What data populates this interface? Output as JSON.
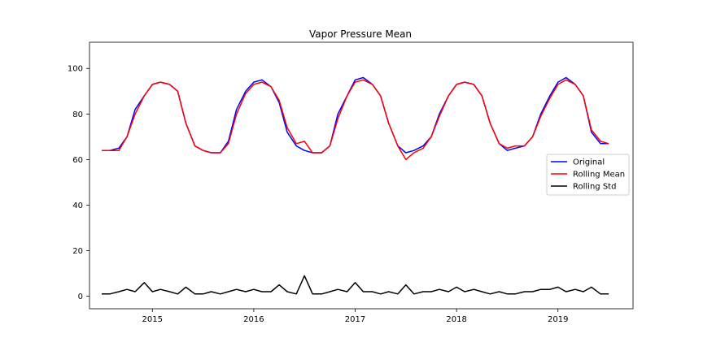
{
  "chart_data": {
    "type": "line",
    "title": "Vapor Pressure Mean",
    "xlabel": "",
    "ylabel": "",
    "xlim": [
      2014.38,
      2019.74
    ],
    "ylim": [
      -5.5,
      111.5
    ],
    "x_ticks": [
      2015,
      2016,
      2017,
      2018,
      2019
    ],
    "x_tick_labels": [
      "2015",
      "2016",
      "2017",
      "2018",
      "2019"
    ],
    "y_ticks": [
      0,
      20,
      40,
      60,
      80,
      100
    ],
    "y_tick_labels": [
      "0",
      "20",
      "40",
      "60",
      "80",
      "100"
    ],
    "grid": false,
    "legend_position": "center-right",
    "series": [
      {
        "name": "Original",
        "color": "#0000ff",
        "x": [
          2014.5,
          2014.58,
          2014.67,
          2014.75,
          2014.83,
          2014.92,
          2015.0,
          2015.08,
          2015.17,
          2015.25,
          2015.33,
          2015.42,
          2015.5,
          2015.58,
          2015.67,
          2015.75,
          2015.83,
          2015.92,
          2016.0,
          2016.08,
          2016.17,
          2016.25,
          2016.33,
          2016.42,
          2016.5,
          2016.58,
          2016.67,
          2016.75,
          2016.83,
          2016.92,
          2017.0,
          2017.08,
          2017.17,
          2017.25,
          2017.33,
          2017.42,
          2017.5,
          2017.58,
          2017.67,
          2017.75,
          2017.83,
          2017.92,
          2018.0,
          2018.08,
          2018.17,
          2018.25,
          2018.33,
          2018.42,
          2018.5,
          2018.58,
          2018.67,
          2018.75,
          2018.83,
          2018.92,
          2019.0,
          2019.08,
          2019.17,
          2019.25,
          2019.33,
          2019.42,
          2019.5
        ],
        "values": [
          64,
          64,
          65,
          70,
          82,
          88,
          93,
          94,
          93,
          90,
          76,
          66,
          64,
          63,
          63,
          68,
          82,
          90,
          94,
          95,
          92,
          85,
          72,
          66,
          64,
          63,
          63,
          66,
          80,
          88,
          95,
          96,
          93,
          88,
          76,
          66,
          63,
          64,
          66,
          70,
          80,
          88,
          93,
          94,
          93,
          88,
          76,
          67,
          64,
          65,
          66,
          70,
          80,
          88,
          94,
          96,
          93,
          88,
          72,
          67,
          67
        ]
      },
      {
        "name": "Rolling Mean",
        "color": "#ff0000",
        "x": [
          2014.5,
          2014.58,
          2014.67,
          2014.75,
          2014.83,
          2014.92,
          2015.0,
          2015.08,
          2015.17,
          2015.25,
          2015.33,
          2015.42,
          2015.5,
          2015.58,
          2015.67,
          2015.75,
          2015.83,
          2015.92,
          2016.0,
          2016.08,
          2016.17,
          2016.25,
          2016.33,
          2016.42,
          2016.5,
          2016.58,
          2016.67,
          2016.75,
          2016.83,
          2016.92,
          2017.0,
          2017.08,
          2017.17,
          2017.25,
          2017.33,
          2017.42,
          2017.5,
          2017.58,
          2017.67,
          2017.75,
          2017.83,
          2017.92,
          2018.0,
          2018.08,
          2018.17,
          2018.25,
          2018.33,
          2018.42,
          2018.5,
          2018.58,
          2018.67,
          2018.75,
          2018.83,
          2018.92,
          2019.0,
          2019.08,
          2019.17,
          2019.25,
          2019.33,
          2019.42,
          2019.5
        ],
        "values": [
          64,
          64,
          64,
          70,
          80,
          88,
          93,
          94,
          93,
          90,
          76,
          66,
          64,
          63,
          63,
          67,
          80,
          89,
          93,
          94,
          92,
          86,
          74,
          67,
          68,
          63,
          63,
          66,
          78,
          88,
          94,
          95,
          93,
          88,
          76,
          66,
          60,
          63,
          65,
          70,
          79,
          88,
          93,
          94,
          93,
          88,
          76,
          67,
          65,
          66,
          66,
          70,
          79,
          87,
          93,
          95,
          93,
          88,
          73,
          68,
          67
        ]
      },
      {
        "name": "Rolling Std",
        "color": "#000000",
        "x": [
          2014.5,
          2014.58,
          2014.67,
          2014.75,
          2014.83,
          2014.92,
          2015.0,
          2015.08,
          2015.17,
          2015.25,
          2015.33,
          2015.42,
          2015.5,
          2015.58,
          2015.67,
          2015.75,
          2015.83,
          2015.92,
          2016.0,
          2016.08,
          2016.17,
          2016.25,
          2016.33,
          2016.42,
          2016.5,
          2016.58,
          2016.67,
          2016.75,
          2016.83,
          2016.92,
          2017.0,
          2017.08,
          2017.17,
          2017.25,
          2017.33,
          2017.42,
          2017.5,
          2017.58,
          2017.67,
          2017.75,
          2017.83,
          2017.92,
          2018.0,
          2018.08,
          2018.17,
          2018.25,
          2018.33,
          2018.42,
          2018.5,
          2018.58,
          2018.67,
          2018.75,
          2018.83,
          2018.92,
          2019.0,
          2019.08,
          2019.17,
          2019.25,
          2019.33,
          2019.42,
          2019.5
        ],
        "values": [
          1,
          1,
          2,
          3,
          2,
          6,
          2,
          3,
          2,
          1,
          4,
          1,
          1,
          2,
          1,
          2,
          3,
          2,
          3,
          2,
          2,
          5,
          2,
          1,
          9,
          1,
          1,
          2,
          3,
          2,
          6,
          2,
          2,
          1,
          2,
          1,
          5,
          1,
          2,
          2,
          3,
          2,
          4,
          2,
          3,
          2,
          1,
          2,
          1,
          1,
          2,
          2,
          3,
          3,
          4,
          2,
          3,
          2,
          4,
          1,
          1
        ]
      }
    ]
  }
}
